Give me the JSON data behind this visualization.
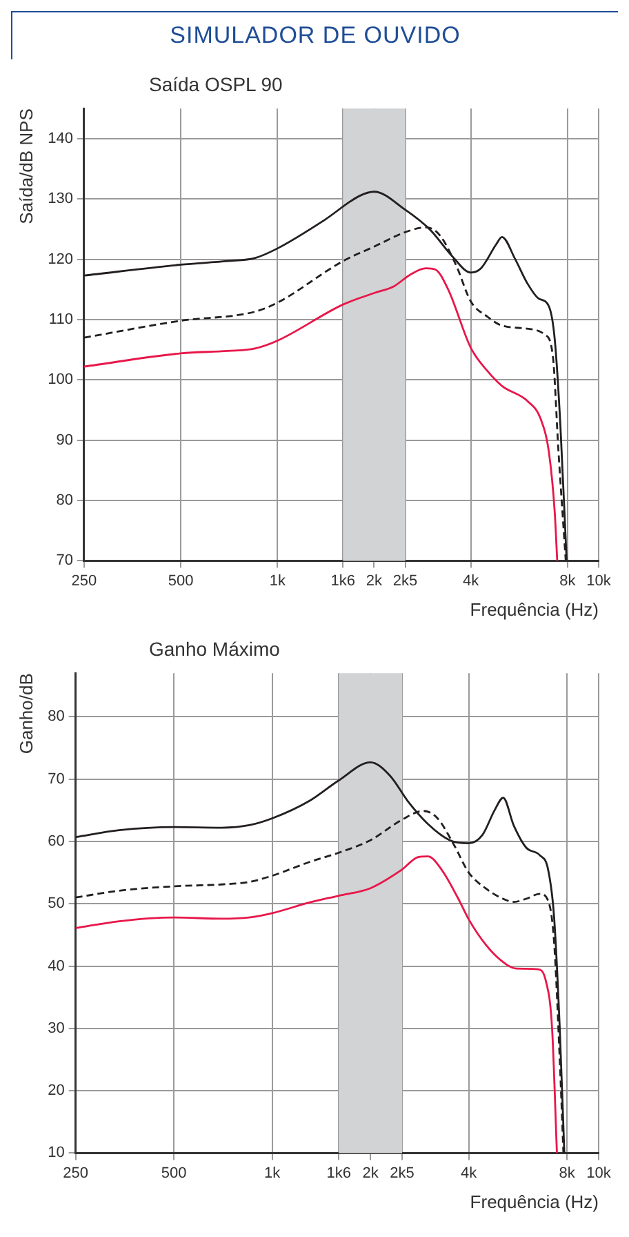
{
  "chart_data": [
    {
      "type": "line",
      "title": "SIMULADOR DE OUVIDO",
      "subtitle": "Saída OSPL 90",
      "xlabel": "Frequência (Hz)",
      "ylabel": "Saída/dB NPS",
      "log": "x",
      "xlim": [
        250,
        10000
      ],
      "xticks": [
        {
          "value": 250,
          "label": "250"
        },
        {
          "value": 500,
          "label": "500"
        },
        {
          "value": 1000,
          "label": "1k"
        },
        {
          "value": 1600,
          "label": "1k6"
        },
        {
          "value": 2000,
          "label": "2k"
        },
        {
          "value": 2500,
          "label": "2k5"
        },
        {
          "value": 4000,
          "label": "4k"
        },
        {
          "value": 8000,
          "label": "8k"
        },
        {
          "value": 10000,
          "label": "10k"
        }
      ],
      "ylim": [
        70,
        145
      ],
      "yticks": [
        70,
        80,
        90,
        100,
        110,
        120,
        130,
        140
      ],
      "grid": true,
      "legend": false,
      "marker": "none",
      "bands": [
        {
          "axis": "x",
          "from": 1600,
          "to": 2500,
          "color": "#d1d3d4"
        }
      ],
      "series": [
        {
          "color": "#231f20",
          "line_style": "solid",
          "x": [
            250,
            500,
            700,
            850,
            1000,
            1400,
            1800,
            2000,
            2500,
            3000,
            3500,
            4000,
            4300,
            4800,
            5000,
            5500,
            6000,
            6500,
            7000,
            7300,
            7600,
            7950
          ],
          "values": [
            117.3,
            119.1,
            119.7,
            120.2,
            121.8,
            126.5,
            130.5,
            131.2,
            128.2,
            124.8,
            120.5,
            117.8,
            118.5,
            122.5,
            123.7,
            120,
            116,
            113.5,
            112.2,
            106.7,
            92.5,
            70
          ]
        },
        {
          "color": "#231f20",
          "line_style": "dashed",
          "x": [
            250,
            500,
            850,
            1000,
            1600,
            2000,
            2500,
            2900,
            3200,
            3600,
            4000,
            4500,
            5000,
            6000,
            6800,
            7200,
            7500,
            7900
          ],
          "values": [
            107,
            109.8,
            111.3,
            112.8,
            119.7,
            122.1,
            124.5,
            125.3,
            124,
            119,
            113,
            110.5,
            109,
            108.5,
            107.5,
            104,
            88,
            70
          ]
        },
        {
          "color": "#e8174a",
          "line_style": "solid",
          "x": [
            250,
            500,
            700,
            850,
            1000,
            1600,
            2000,
            2300,
            2600,
            2900,
            3100,
            3400,
            4000,
            4500,
            5000,
            6000,
            6600,
            7000,
            7300,
            7430
          ],
          "values": [
            102.2,
            104.4,
            104.8,
            105.2,
            106.5,
            112.5,
            114.4,
            115.5,
            117.5,
            118.5,
            118.3,
            115,
            105.3,
            101.5,
            99,
            96.5,
            93.5,
            88,
            78,
            70
          ]
        }
      ]
    },
    {
      "type": "line",
      "title": "Ganho Máximo",
      "xlabel": "Frequência (Hz)",
      "ylabel": "Ganho/dB",
      "log": "x",
      "xlim": [
        250,
        10000
      ],
      "xticks": [
        {
          "value": 250,
          "label": "250"
        },
        {
          "value": 500,
          "label": "500"
        },
        {
          "value": 1000,
          "label": "1k"
        },
        {
          "value": 1600,
          "label": "1k6"
        },
        {
          "value": 2000,
          "label": "2k"
        },
        {
          "value": 2500,
          "label": "2k5"
        },
        {
          "value": 4000,
          "label": "4k"
        },
        {
          "value": 8000,
          "label": "8k"
        },
        {
          "value": 10000,
          "label": "10k"
        }
      ],
      "ylim": [
        10,
        87
      ],
      "yticks": [
        10,
        20,
        30,
        40,
        50,
        60,
        70,
        80
      ],
      "grid": true,
      "legend": false,
      "marker": "none",
      "bands": [
        {
          "axis": "x",
          "from": 1600,
          "to": 2500,
          "color": "#d1d3d4"
        }
      ],
      "series": [
        {
          "color": "#231f20",
          "line_style": "solid",
          "x": [
            250,
            340,
            500,
            700,
            850,
            1000,
            1300,
            1600,
            2000,
            2300,
            2600,
            3000,
            3500,
            4000,
            4400,
            4800,
            5100,
            5500,
            6000,
            6600,
            7000,
            7300,
            7600,
            7850
          ],
          "values": [
            60.7,
            61.8,
            62.3,
            62.2,
            62.6,
            63.7,
            66.5,
            69.8,
            72.7,
            70.5,
            66.5,
            62.8,
            60.2,
            59.7,
            61,
            65,
            67,
            62.5,
            59,
            57.8,
            55.5,
            48,
            30,
            10
          ]
        },
        {
          "color": "#231f20",
          "line_style": "dashed",
          "x": [
            250,
            340,
            500,
            700,
            850,
            1000,
            1300,
            1600,
            2000,
            2500,
            2900,
            3200,
            3600,
            4000,
            4500,
            5000,
            5500,
            6000,
            6600,
            7000,
            7300,
            7600,
            7800
          ],
          "values": [
            51,
            52.1,
            52.8,
            53.1,
            53.5,
            54.5,
            56.7,
            58.2,
            60.2,
            63.5,
            64.9,
            63.8,
            59.5,
            55,
            52.5,
            51,
            50.3,
            50.8,
            51.6,
            50.5,
            44,
            25,
            10
          ]
        },
        {
          "color": "#e8174a",
          "line_style": "solid",
          "x": [
            250,
            340,
            500,
            700,
            850,
            1000,
            1300,
            1600,
            2000,
            2500,
            2800,
            3000,
            3300,
            3700,
            4000,
            4500,
            5000,
            5600,
            6500,
            6900,
            7200,
            7450
          ],
          "values": [
            46.1,
            47.2,
            47.8,
            47.6,
            47.8,
            48.5,
            50.2,
            51.3,
            52.5,
            55.5,
            57.5,
            57.6,
            55.5,
            51,
            47.5,
            43.5,
            41,
            39.6,
            39.5,
            37.5,
            30,
            10
          ]
        }
      ]
    }
  ]
}
